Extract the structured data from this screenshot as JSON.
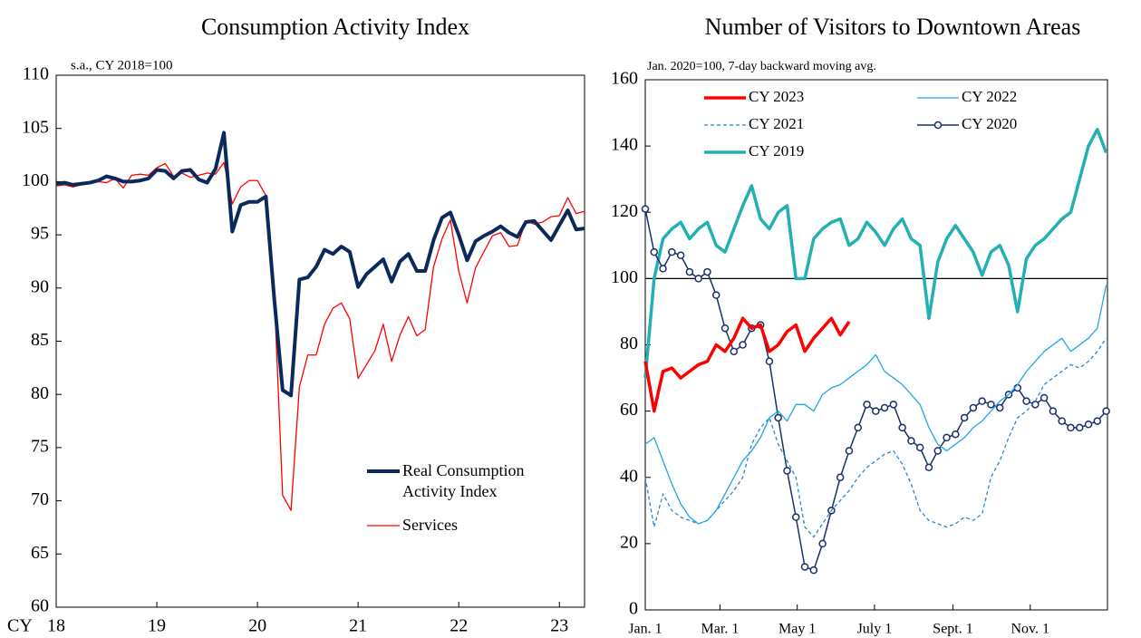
{
  "chart_data": [
    {
      "type": "line",
      "title": "Consumption Activity Index",
      "subtitle": "s.a., CY 2018=100",
      "x_label": "CY",
      "categories": [
        "18",
        null,
        null,
        null,
        null,
        null,
        null,
        null,
        null,
        null,
        null,
        null,
        "19",
        null,
        null,
        null,
        null,
        null,
        null,
        null,
        null,
        null,
        null,
        null,
        "20",
        null,
        null,
        null,
        null,
        null,
        null,
        null,
        null,
        null,
        null,
        null,
        "21",
        null,
        null,
        null,
        null,
        null,
        null,
        null,
        null,
        null,
        null,
        null,
        "22",
        null,
        null,
        null,
        null,
        null,
        null,
        null,
        null,
        null,
        null,
        null,
        "23",
        null,
        null,
        null
      ],
      "ylim": [
        60,
        110
      ],
      "yticks": [
        60,
        65,
        70,
        75,
        80,
        85,
        90,
        95,
        100,
        105,
        110
      ],
      "legend": {
        "loc": "lower right",
        "columns": 1
      },
      "series": [
        {
          "name": "Real Consumption Activity Index",
          "color": "#0b2a5b",
          "width": 4,
          "values": [
            99.8,
            99.9,
            99.7,
            99.8,
            99.9,
            100.1,
            100.5,
            100.3,
            100.0,
            100.0,
            100.1,
            100.3,
            101.1,
            101.0,
            100.3,
            101.0,
            101.1,
            100.2,
            99.9,
            101.2,
            104.6,
            95.3,
            97.8,
            98.1,
            98.1,
            98.6,
            89.0,
            80.4,
            79.9,
            90.8,
            91.0,
            92.0,
            93.6,
            93.2,
            93.9,
            93.4,
            90.1,
            91.3,
            92.0,
            92.7,
            90.6,
            92.5,
            93.2,
            91.6,
            91.6,
            94.5,
            96.6,
            97.1,
            95.0,
            92.6,
            94.4,
            94.9,
            95.3,
            95.8,
            95.2,
            94.8,
            96.2,
            96.3,
            95.4,
            94.5,
            95.9,
            97.3,
            95.5,
            95.6
          ]
        },
        {
          "name": "Services",
          "color": "#ff0000",
          "width": 1.3,
          "values": [
            99.6,
            99.7,
            99.5,
            99.7,
            99.9,
            100.0,
            99.9,
            100.3,
            99.4,
            100.6,
            100.7,
            100.6,
            101.3,
            101.7,
            100.5,
            100.8,
            100.4,
            100.6,
            100.8,
            100.7,
            101.8,
            97.9,
            99.5,
            100.1,
            100.1,
            98.7,
            89.5,
            70.5,
            69.1,
            80.7,
            83.7,
            83.7,
            86.6,
            88.1,
            88.6,
            87.1,
            81.5,
            82.8,
            84.1,
            86.6,
            83.1,
            85.6,
            87.3,
            85.5,
            86.1,
            92.0,
            94.6,
            96.4,
            91.6,
            88.6,
            91.9,
            93.4,
            94.9,
            95.2,
            93.9,
            94.0,
            96.3,
            96.0,
            96.2,
            96.7,
            96.8,
            98.5,
            97.0,
            97.2
          ]
        }
      ]
    },
    {
      "type": "line",
      "title": "Number of Visitors to Downtown Areas",
      "subtitle": "Jan. 2020=100, 7-day backward moving avg.",
      "x": [
        1,
        8,
        15,
        22,
        29,
        36,
        43,
        50,
        57,
        64,
        71,
        78,
        85,
        92,
        99,
        106,
        113,
        120,
        127,
        134,
        141,
        148,
        155,
        162,
        169,
        176,
        183,
        190,
        197,
        204,
        211,
        218,
        225,
        232,
        239,
        246,
        253,
        260,
        267,
        274,
        281,
        288,
        295,
        302,
        309,
        316,
        323,
        330,
        337,
        344,
        351,
        358,
        365
      ],
      "xlim": [
        1,
        366
      ],
      "xticks": [
        {
          "value": 1,
          "label": "Jan. 1"
        },
        {
          "value": 60,
          "label": "Mar. 1"
        },
        {
          "value": 121,
          "label": "May 1"
        },
        {
          "value": 182,
          "label": "July 1"
        },
        {
          "value": 244,
          "label": "Sept. 1"
        },
        {
          "value": 305,
          "label": "Nov. 1"
        }
      ],
      "ylim": [
        0,
        160
      ],
      "yticks": [
        0,
        20,
        40,
        60,
        80,
        100,
        120,
        140,
        160
      ],
      "hline": 100,
      "legend": {
        "loc": "upper left",
        "columns": 2
      },
      "series": [
        {
          "name": "CY 2023",
          "color": "#ff0000",
          "width": 3.5,
          "values": [
            75,
            60,
            72,
            73,
            70,
            72,
            74,
            75,
            80,
            78,
            82,
            88,
            85,
            86,
            78,
            80,
            84,
            86,
            78,
            82,
            85,
            88,
            83,
            87,
            null,
            null,
            null,
            null,
            null,
            null,
            null,
            null,
            null,
            null,
            null,
            null,
            null,
            null,
            null,
            null,
            null,
            null,
            null,
            null,
            null,
            null,
            null,
            null,
            null,
            null,
            null,
            null,
            null
          ]
        },
        {
          "name": "CY 2022",
          "color": "#1ea7e8",
          "width": 1.3,
          "values": [
            50,
            52,
            45,
            38,
            32,
            28,
            26,
            27,
            30,
            35,
            40,
            45,
            48,
            52,
            58,
            60,
            57,
            62,
            62,
            60,
            65,
            67,
            68,
            70,
            72,
            74,
            77,
            72,
            70,
            68,
            65,
            62,
            55,
            50,
            48,
            50,
            52,
            55,
            57,
            60,
            63,
            65,
            68,
            72,
            75,
            78,
            80,
            82,
            78,
            80,
            82,
            85,
            98
          ]
        },
        {
          "name": "CY 2021",
          "color": "#2a86cf",
          "width": 1.3,
          "dash": true,
          "values": [
            40,
            25,
            35,
            30,
            28,
            27,
            26,
            27,
            30,
            33,
            36,
            40,
            50,
            55,
            58,
            50,
            45,
            40,
            25,
            22,
            26,
            30,
            33,
            36,
            40,
            43,
            45,
            47,
            48,
            44,
            38,
            30,
            27,
            26,
            25,
            26,
            28,
            27,
            29,
            40,
            45,
            52,
            58,
            60,
            63,
            68,
            70,
            72,
            74,
            73,
            75,
            78,
            82
          ]
        },
        {
          "name": "CY 2020",
          "color": "#1b2f6b",
          "width": 1.5,
          "marker": "circle",
          "values": [
            121,
            108,
            103,
            108,
            107,
            102,
            100,
            102,
            95,
            85,
            78,
            80,
            85,
            86,
            75,
            58,
            42,
            28,
            13,
            12,
            20,
            30,
            40,
            48,
            55,
            62,
            60,
            61,
            62,
            55,
            51,
            49,
            43,
            48,
            52,
            53,
            58,
            61,
            63,
            62,
            61,
            65,
            67,
            63,
            62,
            64,
            60,
            57,
            55,
            55,
            56,
            57,
            60
          ]
        },
        {
          "name": "CY 2019",
          "color": "#22b0b3",
          "width": 3.5,
          "values": [
            70,
            100,
            112,
            115,
            117,
            112,
            115,
            117,
            110,
            108,
            115,
            122,
            128,
            118,
            115,
            120,
            122,
            100,
            100,
            112,
            115,
            117,
            118,
            110,
            112,
            117,
            114,
            110,
            115,
            118,
            112,
            110,
            88,
            105,
            112,
            116,
            112,
            108,
            101,
            108,
            110,
            104,
            90,
            106,
            110,
            112,
            115,
            118,
            120,
            130,
            140,
            145,
            138
          ]
        }
      ]
    }
  ]
}
